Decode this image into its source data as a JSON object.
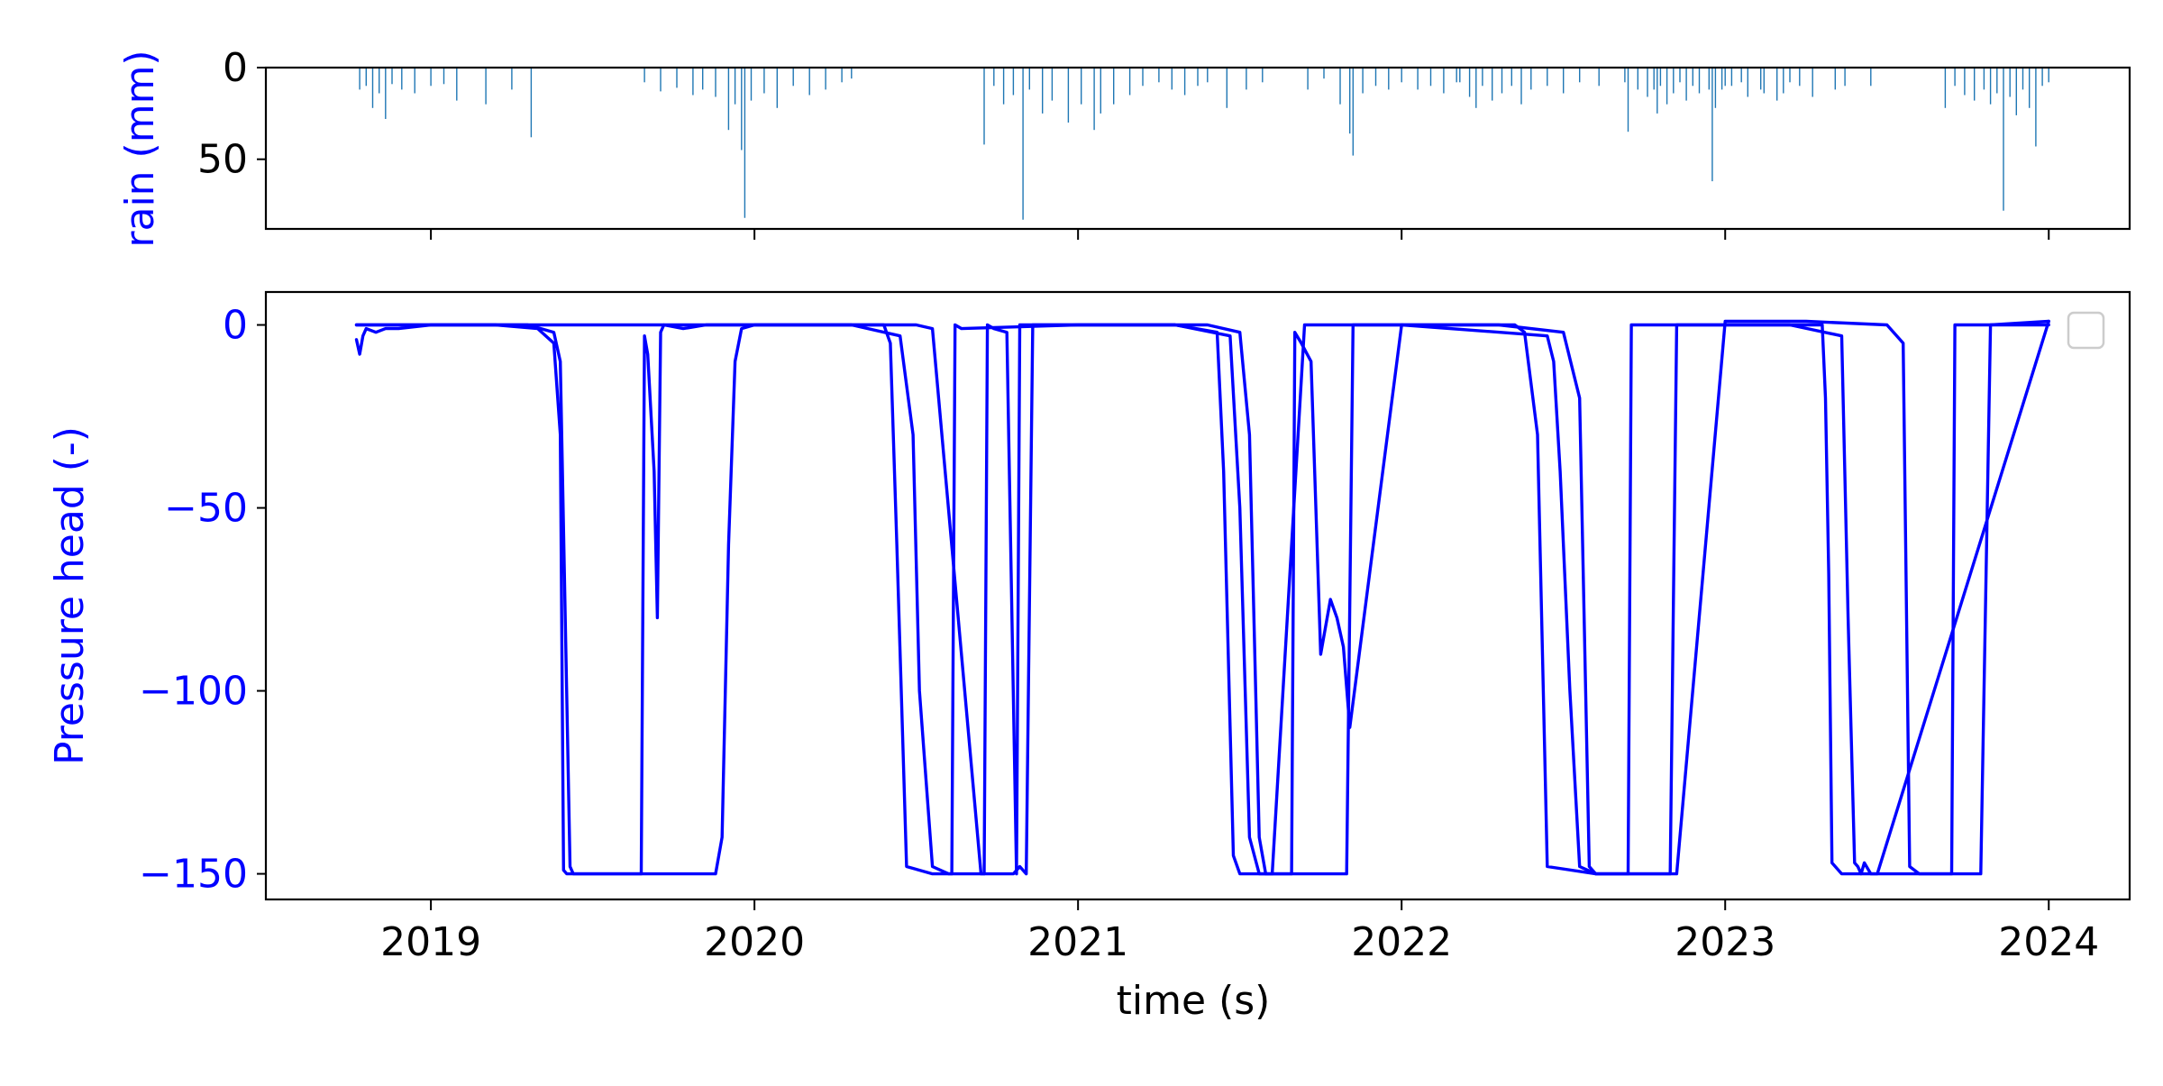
{
  "colors": {
    "rain": "#1f77b4",
    "pressure": "#0000ff",
    "axes": "#000000",
    "legend_border": "#cccccc"
  },
  "chart_data": [
    {
      "type": "bar",
      "panel": "top",
      "ylabel": "rain (mm)",
      "y_inverted": true,
      "ylim": [
        0,
        88
      ],
      "yticks": [
        0,
        50
      ],
      "xlim": [
        2018.49,
        2024.25
      ],
      "grid": false,
      "events": [
        [
          2018.78,
          12
        ],
        [
          2018.8,
          10
        ],
        [
          2018.82,
          22
        ],
        [
          2018.84,
          14
        ],
        [
          2018.86,
          28
        ],
        [
          2018.88,
          9
        ],
        [
          2018.91,
          12
        ],
        [
          2018.95,
          14
        ],
        [
          2019.0,
          10
        ],
        [
          2019.04,
          9
        ],
        [
          2019.08,
          18
        ],
        [
          2019.17,
          20
        ],
        [
          2019.25,
          12
        ],
        [
          2019.31,
          38
        ],
        [
          2019.66,
          8
        ],
        [
          2019.71,
          13
        ],
        [
          2019.76,
          11
        ],
        [
          2019.81,
          15
        ],
        [
          2019.84,
          12
        ],
        [
          2019.88,
          16
        ],
        [
          2019.92,
          34
        ],
        [
          2019.94,
          20
        ],
        [
          2019.96,
          45
        ],
        [
          2019.97,
          82
        ],
        [
          2019.99,
          18
        ],
        [
          2020.03,
          14
        ],
        [
          2020.07,
          22
        ],
        [
          2020.12,
          10
        ],
        [
          2020.17,
          15
        ],
        [
          2020.22,
          12
        ],
        [
          2020.27,
          8
        ],
        [
          2020.3,
          6
        ],
        [
          2020.71,
          42
        ],
        [
          2020.74,
          10
        ],
        [
          2020.77,
          20
        ],
        [
          2020.8,
          15
        ],
        [
          2020.83,
          83
        ],
        [
          2020.85,
          12
        ],
        [
          2020.89,
          25
        ],
        [
          2020.92,
          18
        ],
        [
          2020.97,
          30
        ],
        [
          2021.01,
          20
        ],
        [
          2021.05,
          34
        ],
        [
          2021.07,
          25
        ],
        [
          2021.11,
          20
        ],
        [
          2021.16,
          15
        ],
        [
          2021.2,
          10
        ],
        [
          2021.25,
          8
        ],
        [
          2021.29,
          12
        ],
        [
          2021.33,
          15
        ],
        [
          2021.37,
          10
        ],
        [
          2021.4,
          8
        ],
        [
          2021.46,
          22
        ],
        [
          2021.52,
          12
        ],
        [
          2021.57,
          8
        ],
        [
          2021.71,
          12
        ],
        [
          2021.76,
          6
        ],
        [
          2021.81,
          20
        ],
        [
          2021.84,
          36
        ],
        [
          2021.85,
          48
        ],
        [
          2021.88,
          14
        ],
        [
          2021.92,
          10
        ],
        [
          2021.96,
          12
        ],
        [
          2022.0,
          8
        ],
        [
          2022.05,
          12
        ],
        [
          2022.09,
          10
        ],
        [
          2022.13,
          14
        ],
        [
          2022.17,
          8
        ],
        [
          2022.18,
          8
        ],
        [
          2022.21,
          16
        ],
        [
          2022.23,
          22
        ],
        [
          2022.25,
          10
        ],
        [
          2022.28,
          18
        ],
        [
          2022.31,
          14
        ],
        [
          2022.34,
          10
        ],
        [
          2022.37,
          20
        ],
        [
          2022.4,
          12
        ],
        [
          2022.45,
          10
        ],
        [
          2022.5,
          14
        ],
        [
          2022.55,
          8
        ],
        [
          2022.61,
          10
        ],
        [
          2022.69,
          8
        ],
        [
          2022.78,
          12
        ],
        [
          2022.8,
          10
        ],
        [
          2022.84,
          14
        ],
        [
          2022.86,
          8
        ],
        [
          2022.9,
          10
        ],
        [
          2022.95,
          12
        ],
        [
          2023.0,
          10
        ],
        [
          2023.05,
          8
        ],
        [
          2023.12,
          14
        ],
        [
          2023.16,
          18
        ],
        [
          2023.2,
          8
        ],
        [
          2023.23,
          10
        ],
        [
          2023.27,
          16
        ],
        [
          2023.34,
          12
        ],
        [
          2023.37,
          10
        ],
        [
          2023.45,
          10
        ],
        [
          2022.7,
          35
        ],
        [
          2022.73,
          12
        ],
        [
          2022.76,
          16
        ],
        [
          2022.79,
          25
        ],
        [
          2022.82,
          20
        ],
        [
          2022.88,
          18
        ],
        [
          2022.92,
          14
        ],
        [
          2022.96,
          62
        ],
        [
          2022.97,
          22
        ],
        [
          2022.99,
          12
        ],
        [
          2023.02,
          10
        ],
        [
          2023.07,
          16
        ],
        [
          2023.11,
          12
        ],
        [
          2023.18,
          14
        ],
        [
          2023.68,
          22
        ],
        [
          2023.71,
          10
        ],
        [
          2023.74,
          15
        ],
        [
          2023.77,
          18
        ],
        [
          2023.8,
          12
        ],
        [
          2023.82,
          20
        ],
        [
          2023.84,
          14
        ],
        [
          2023.86,
          78
        ],
        [
          2023.88,
          16
        ],
        [
          2023.9,
          26
        ],
        [
          2023.92,
          12
        ],
        [
          2023.94,
          22
        ],
        [
          2023.96,
          43
        ],
        [
          2023.98,
          10
        ],
        [
          2024.0,
          8
        ]
      ]
    },
    {
      "type": "line",
      "panel": "bottom",
      "ylabel": "Pressure head (-)",
      "xlabel": "time (s)",
      "ylim": [
        -157,
        9
      ],
      "yticks": [
        0,
        -50,
        -100,
        -150
      ],
      "yticklabels": [
        "0",
        "−50",
        "−100",
        "−150"
      ],
      "xlim": [
        2018.49,
        2024.25
      ],
      "xticks": [
        2019,
        2020,
        2021,
        2022,
        2023,
        2024
      ],
      "xticklabels": [
        "2019",
        "2020",
        "2021",
        "2022",
        "2023",
        "2024"
      ],
      "grid": false,
      "legend": "top-right (empty)",
      "series": [
        {
          "x": [
            2018.77,
            2018.78,
            2018.79,
            2018.8,
            2018.83,
            2018.86,
            2018.9,
            2019.0,
            2019.2,
            2019.33,
            2019.38,
            2019.4,
            2019.41,
            2019.42,
            2019.44,
            2019.5,
            2019.65,
            2019.66,
            2019.67,
            2019.69,
            2019.7,
            2019.71,
            2019.72,
            2019.78,
            2019.85,
            2020.0,
            2020.4,
            2020.42,
            2020.44,
            2020.47,
            2020.55,
            2020.7,
            2020.8,
            2020.82,
            2020.84,
            2020.86,
            2021.0,
            2021.3,
            2021.43,
            2021.45,
            2021.48,
            2021.5,
            2021.52,
            2021.6,
            2021.75,
            2021.81,
            2021.83,
            2021.85,
            2022.0,
            2022.35,
            2022.38,
            2022.42,
            2022.45,
            2022.6,
            2022.82,
            2022.83,
            2022.85,
            2022.9,
            2023.1,
            2023.3,
            2023.31,
            2023.32,
            2023.33,
            2023.36,
            2023.4,
            2023.48,
            2023.6,
            2023.78,
            2023.79,
            2023.82,
            2024.0
          ],
          "y": [
            -4,
            -8,
            -3,
            -1,
            -2,
            -1,
            -1,
            0,
            0,
            -1,
            -5,
            -30,
            -149,
            -150,
            -150,
            -150,
            -150,
            -3,
            -8,
            -40,
            -80,
            -2,
            0,
            -1,
            0,
            0,
            0,
            -5,
            -60,
            -148,
            -150,
            -150,
            -150,
            -148,
            -150,
            0,
            0,
            0,
            -2,
            -40,
            -145,
            -150,
            -150,
            -150,
            -150,
            -150,
            -150,
            0,
            0,
            0,
            -2,
            -30,
            -148,
            -150,
            -150,
            -150,
            0,
            0,
            0,
            0,
            -20,
            -68,
            -147,
            -150,
            -150,
            -150,
            -150,
            -150,
            -150,
            0,
            1
          ]
        },
        {
          "x": [
            2018.77,
            2019.3,
            2019.38,
            2019.4,
            2019.43,
            2019.44,
            2019.7,
            2019.74,
            2019.78,
            2019.82,
            2019.85,
            2019.88,
            2019.9,
            2019.92,
            2019.94,
            2019.96,
            2020.0,
            2020.3,
            2020.45,
            2020.49,
            2020.51,
            2020.55,
            2020.6,
            2020.61,
            2020.62,
            2020.64,
            2021.0,
            2021.3,
            2021.47,
            2021.5,
            2021.53,
            2021.56,
            2021.6,
            2021.65,
            2021.66,
            2021.67,
            2021.69,
            2021.72,
            2021.75,
            2021.78,
            2021.8,
            2021.82,
            2021.84,
            2022.0,
            2022.45,
            2022.47,
            2022.49,
            2022.52,
            2022.55,
            2022.6,
            2022.69,
            2022.7,
            2022.71,
            2022.73,
            2022.85,
            2023.0,
            2023.2,
            2023.36,
            2023.38,
            2023.4,
            2023.41,
            2023.42,
            2023.43,
            2023.45,
            2023.47,
            2024.0
          ],
          "y": [
            0,
            0,
            -2,
            -10,
            -148,
            -150,
            -150,
            -150,
            -150,
            -150,
            -150,
            -150,
            -140,
            -60,
            -10,
            -1,
            0,
            0,
            -3,
            -30,
            -100,
            -148,
            -150,
            -150,
            0,
            -1,
            0,
            0,
            -3,
            -50,
            -140,
            -150,
            -150,
            -150,
            -150,
            -2,
            -5,
            -10,
            -90,
            -75,
            -80,
            -88,
            -110,
            0,
            -3,
            -10,
            -40,
            -100,
            -148,
            -150,
            -150,
            -150,
            0,
            0,
            0,
            0,
            0,
            -3,
            -80,
            -147,
            -148,
            -150,
            -147,
            -150,
            -150,
            1
          ]
        },
        {
          "x": [
            2018.77,
            2019.4,
            2019.45,
            2019.9,
            2020.4,
            2020.5,
            2020.55,
            2020.7,
            2020.71,
            2020.72,
            2020.74,
            2020.78,
            2020.81,
            2020.82,
            2021.4,
            2021.5,
            2021.53,
            2021.56,
            2021.58,
            2021.6,
            2021.7,
            2022.3,
            2022.5,
            2022.55,
            2022.58,
            2022.6,
            2022.85,
            2023.0,
            2023.25,
            2023.5,
            2023.55,
            2023.57,
            2023.6,
            2023.7,
            2023.71,
            2024.0
          ],
          "y": [
            0,
            0,
            0,
            0,
            0,
            0,
            -1,
            -150,
            -150,
            0,
            -1,
            -2,
            -150,
            0,
            0,
            -2,
            -30,
            -140,
            -150,
            -150,
            0,
            0,
            -2,
            -20,
            -148,
            -150,
            -150,
            1,
            1,
            0,
            -5,
            -148,
            -150,
            -150,
            0,
            0
          ]
        }
      ]
    }
  ]
}
